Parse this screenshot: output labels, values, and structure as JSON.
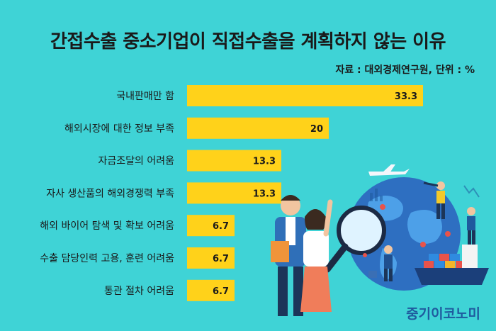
{
  "title": "간접수출 중소기업이 직접수출을 계획하지 않는 이유",
  "source": "자료 : 대외경제연구원, 단위 : %",
  "brand": "중기이코노미",
  "colors": {
    "background": "#3fd3d6",
    "bar": "#ffd21a",
    "text": "#1a1a1a",
    "brand": "#1f5a9e"
  },
  "chart_data": {
    "type": "bar",
    "orientation": "horizontal",
    "categories": [
      "국내판매만 함",
      "해외시장에 대한 정보 부족",
      "자금조달의 어려움",
      "자사 생산품의 해외경쟁력 부족",
      "해외 바이어 탐색 및 확보 어려움",
      "수출 담당인력 고용, 훈련 어려움",
      "통관 절차 어려움"
    ],
    "values": [
      33.3,
      20,
      13.3,
      13.3,
      6.7,
      6.7,
      6.7
    ],
    "data_labels": [
      "33.3",
      "20",
      "13.3",
      "13.3",
      "6.7",
      "6.7",
      "6.7"
    ],
    "xlim": [
      0,
      33.3
    ],
    "grid": false,
    "legend": "none"
  }
}
